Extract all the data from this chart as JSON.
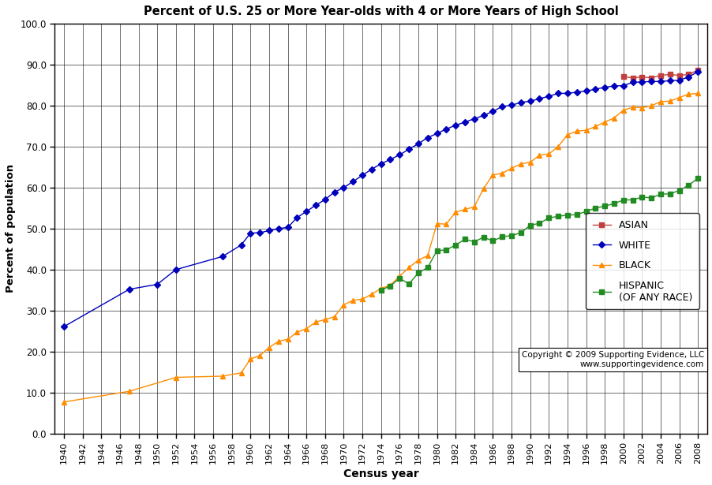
{
  "title": "Percent of U.S. 25 or More Year-olds with 4 or More Years of High School",
  "xlabel": "Census year",
  "ylabel": "Percent of population",
  "xlim": [
    1939,
    2009
  ],
  "ylim": [
    0.0,
    100.0
  ],
  "yticks": [
    0.0,
    10.0,
    20.0,
    30.0,
    40.0,
    50.0,
    60.0,
    70.0,
    80.0,
    90.0,
    100.0
  ],
  "xticks": [
    1940,
    1942,
    1944,
    1946,
    1948,
    1950,
    1952,
    1954,
    1956,
    1958,
    1960,
    1962,
    1964,
    1966,
    1968,
    1970,
    1972,
    1974,
    1976,
    1978,
    1980,
    1982,
    1984,
    1986,
    1988,
    1990,
    1992,
    1994,
    1996,
    1998,
    2000,
    2002,
    2004,
    2006,
    2008
  ],
  "white": {
    "color": "#0000BB",
    "marker": "D",
    "markersize": 4,
    "label": "WHITE",
    "x": [
      1940,
      1947,
      1950,
      1952,
      1957,
      1959,
      1960,
      1961,
      1962,
      1963,
      1964,
      1965,
      1966,
      1967,
      1968,
      1969,
      1970,
      1971,
      1972,
      1973,
      1974,
      1975,
      1976,
      1977,
      1978,
      1979,
      1980,
      1981,
      1982,
      1983,
      1984,
      1985,
      1986,
      1987,
      1988,
      1989,
      1990,
      1991,
      1992,
      1993,
      1994,
      1995,
      1996,
      1997,
      1998,
      1999,
      2000,
      2001,
      2002,
      2003,
      2004,
      2005,
      2006,
      2007,
      2008
    ],
    "y": [
      26.1,
      35.2,
      36.4,
      40.0,
      43.2,
      46.0,
      48.9,
      49.0,
      49.5,
      50.0,
      50.3,
      52.7,
      54.2,
      55.7,
      57.1,
      58.9,
      60.0,
      61.5,
      63.0,
      64.5,
      65.8,
      66.9,
      68.0,
      69.4,
      70.7,
      72.2,
      73.2,
      74.3,
      75.2,
      76.0,
      76.8,
      77.6,
      78.6,
      79.8,
      80.1,
      80.8,
      81.1,
      81.7,
      82.3,
      83.0,
      83.0,
      83.3,
      83.6,
      84.0,
      84.5,
      84.8,
      84.9,
      85.7,
      85.8,
      85.9,
      85.9,
      86.1,
      86.2,
      87.0,
      88.3
    ]
  },
  "black": {
    "color": "#FF8C00",
    "marker": "^",
    "markersize": 5,
    "label": "BLACK",
    "x": [
      1940,
      1947,
      1952,
      1957,
      1959,
      1960,
      1961,
      1962,
      1963,
      1964,
      1965,
      1966,
      1967,
      1968,
      1969,
      1970,
      1971,
      1972,
      1973,
      1974,
      1975,
      1976,
      1977,
      1978,
      1979,
      1980,
      1981,
      1982,
      1983,
      1984,
      1985,
      1986,
      1987,
      1988,
      1989,
      1990,
      1991,
      1992,
      1993,
      1994,
      1995,
      1996,
      1997,
      1998,
      1999,
      2000,
      2001,
      2002,
      2003,
      2004,
      2005,
      2006,
      2007,
      2008
    ],
    "y": [
      7.7,
      10.3,
      13.7,
      14.0,
      14.8,
      18.2,
      19.0,
      21.0,
      22.5,
      23.0,
      24.7,
      25.6,
      27.2,
      27.8,
      28.5,
      31.4,
      32.5,
      32.8,
      34.0,
      35.4,
      36.2,
      38.4,
      40.5,
      42.3,
      43.4,
      51.2,
      51.1,
      54.0,
      54.7,
      55.3,
      59.8,
      63.1,
      63.5,
      64.7,
      65.8,
      66.2,
      67.9,
      68.2,
      70.0,
      72.9,
      73.8,
      74.0,
      74.9,
      76.0,
      77.0,
      78.9,
      79.6,
      79.5,
      80.0,
      81.0,
      81.1,
      82.0,
      82.8,
      83.0
    ]
  },
  "hispanic": {
    "color": "#228B22",
    "marker": "s",
    "markersize": 5,
    "label": "HISPANIC\n(OF ANY RACE)",
    "x": [
      1974,
      1975,
      1976,
      1977,
      1978,
      1979,
      1980,
      1981,
      1982,
      1983,
      1984,
      1985,
      1986,
      1987,
      1988,
      1989,
      1990,
      1991,
      1992,
      1993,
      1994,
      1995,
      1996,
      1997,
      1998,
      1999,
      2000,
      2001,
      2002,
      2003,
      2004,
      2005,
      2006,
      2007,
      2008
    ],
    "y": [
      35.0,
      36.0,
      37.9,
      36.5,
      39.2,
      40.5,
      44.6,
      44.8,
      46.0,
      47.4,
      46.8,
      47.9,
      47.0,
      48.0,
      48.3,
      49.0,
      50.8,
      51.3,
      52.6,
      53.0,
      53.3,
      53.4,
      54.2,
      55.0,
      55.5,
      56.1,
      57.0,
      57.0,
      57.7,
      57.5,
      58.4,
      58.5,
      59.3,
      60.6,
      62.3
    ]
  },
  "asian": {
    "color": "#C04040",
    "marker": "s",
    "markersize": 5,
    "label": "ASIAN",
    "x": [
      2000,
      2001,
      2002,
      2003,
      2004,
      2005,
      2006,
      2007,
      2008
    ],
    "y": [
      87.1,
      86.8,
      87.0,
      86.8,
      87.4,
      87.6,
      87.4,
      87.6,
      88.7
    ]
  },
  "copyright_text": "Copyright © 2009 Supporting Evidence, LLC\nwww.supportingevidence.com",
  "background_color": "#FFFFFF"
}
